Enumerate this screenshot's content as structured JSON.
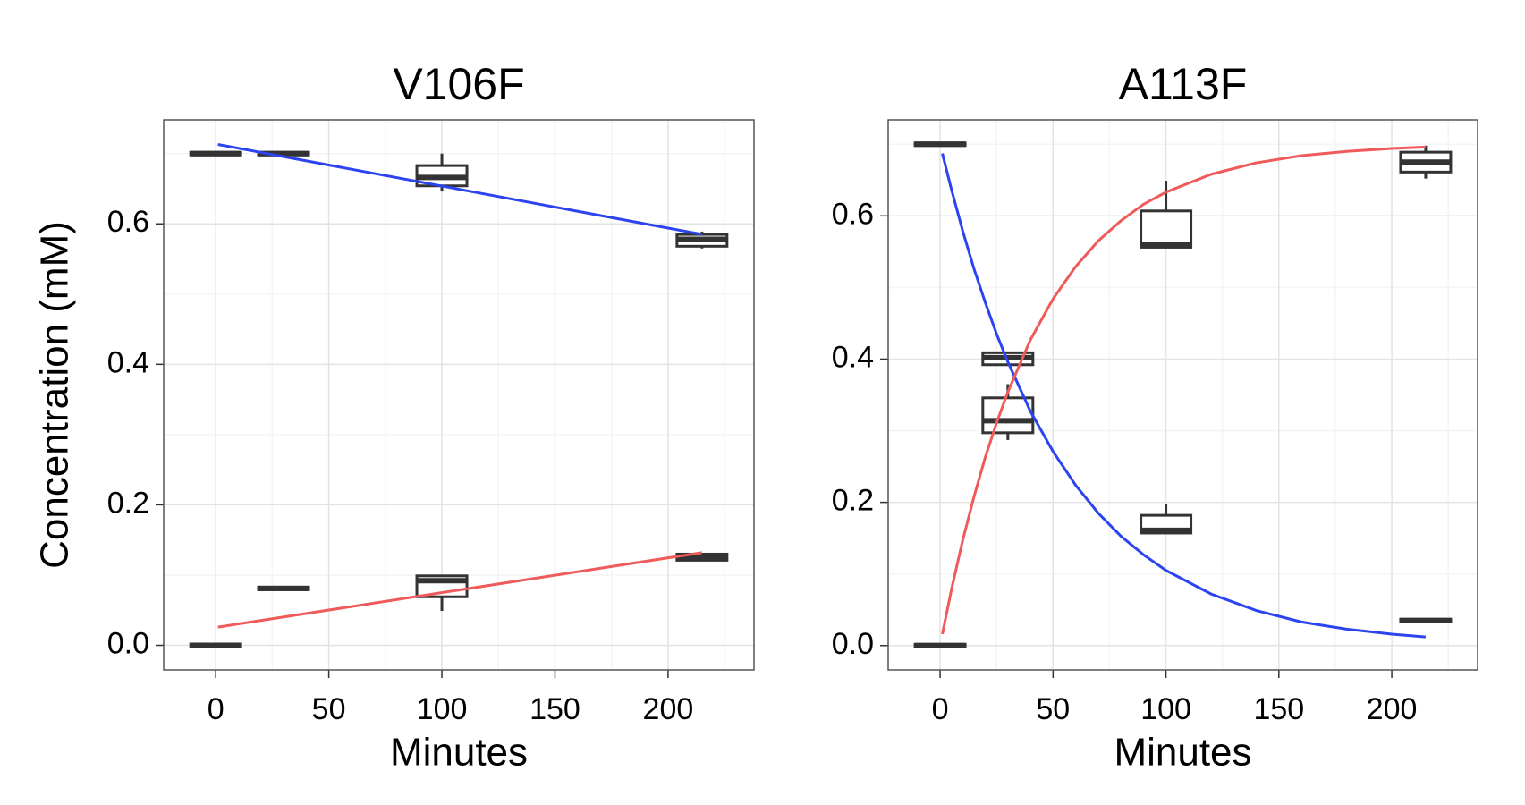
{
  "chart_data": [
    {
      "type": "box",
      "title": "V106F",
      "x_label": "Minutes",
      "y_label": "Concentration (mM)",
      "xlim": [
        -23,
        238
      ],
      "ylim": [
        -0.035,
        0.748
      ],
      "xticks": [
        0,
        50,
        100,
        150,
        200
      ],
      "yticks": [
        {
          "value": 0,
          "label": "0.0"
        },
        0.2,
        0.4,
        0.6
      ],
      "xminor": [
        25,
        75,
        125,
        175,
        225
      ],
      "yminor": [
        0.1,
        0.3,
        0.5,
        0.7
      ],
      "grid": true,
      "box_color": "#333333",
      "boxes": [
        {
          "x": 0,
          "min": 0.7,
          "q1": 0.7,
          "median": 0.7,
          "q3": 0.7,
          "max": 0.7
        },
        {
          "x": 0,
          "min": 0,
          "q1": 0,
          "median": 0,
          "q3": 0,
          "max": 0
        },
        {
          "x": 30,
          "min": 0.7,
          "q1": 0.7,
          "median": 0.7,
          "q3": 0.7,
          "max": 0.7
        },
        {
          "x": 30,
          "min": 0.081,
          "q1": 0.081,
          "median": 0.081,
          "q3": 0.081,
          "max": 0.081
        },
        {
          "x": 100,
          "min": 0.646,
          "q1": 0.656,
          "median": 0.666,
          "q3": 0.681,
          "max": 0.7
        },
        {
          "x": 100,
          "min": 0.049,
          "q1": 0.071,
          "median": 0.092,
          "q3": 0.097,
          "max": 0.1
        },
        {
          "x": 215,
          "min": 0.565,
          "q1": 0.57,
          "median": 0.578,
          "q3": 0.583,
          "max": 0.589
        },
        {
          "x": 215,
          "min": 0.123,
          "q1": 0.123,
          "median": 0.125,
          "q3": 0.128,
          "max": 0.128
        }
      ],
      "series": [
        {
          "color": "#2b44f0",
          "x": [
            1,
            215
          ],
          "values": [
            0.713,
            0.585
          ]
        },
        {
          "color": "#ef5a5a",
          "x": [
            1,
            215
          ],
          "values": [
            0.026,
            0.132
          ]
        }
      ]
    },
    {
      "type": "box",
      "title": "A113F",
      "x_label": "Minutes",
      "xlim": [
        -23,
        238
      ],
      "ylim": [
        -0.034,
        0.734
      ],
      "xticks": [
        0,
        50,
        100,
        150,
        200
      ],
      "yticks": [
        {
          "value": 0,
          "label": "0.0"
        },
        0.2,
        0.4,
        0.6
      ],
      "xminor": [
        25,
        75,
        125,
        175,
        225
      ],
      "yminor": [
        0.1,
        0.3,
        0.5,
        0.7
      ],
      "grid": true,
      "box_color": "#333333",
      "boxes": [
        {
          "x": 0,
          "min": 0.7,
          "q1": 0.7,
          "median": 0.7,
          "q3": 0.7,
          "max": 0.7
        },
        {
          "x": 0,
          "min": 0,
          "q1": 0,
          "median": 0,
          "q3": 0,
          "max": 0
        },
        {
          "x": 30,
          "min": 0.394,
          "q1": 0.394,
          "median": 0.402,
          "q3": 0.407,
          "max": 0.407
        },
        {
          "x": 30,
          "min": 0.287,
          "q1": 0.299,
          "median": 0.314,
          "q3": 0.344,
          "max": 0.365
        },
        {
          "x": 100,
          "min": 0.558,
          "q1": 0.558,
          "median": 0.56,
          "q3": 0.605,
          "max": 0.649
        },
        {
          "x": 100,
          "min": 0.159,
          "q1": 0.159,
          "median": 0.161,
          "q3": 0.18,
          "max": 0.198
        },
        {
          "x": 215,
          "min": 0.652,
          "q1": 0.663,
          "median": 0.675,
          "q3": 0.687,
          "max": 0.698
        },
        {
          "x": 215,
          "min": 0.035,
          "q1": 0.035,
          "median": 0.035,
          "q3": 0.035,
          "max": 0.035
        }
      ],
      "series": [
        {
          "color": "#2b44f0",
          "x": [
            1,
            5,
            10,
            15,
            20,
            25,
            30,
            40,
            50,
            60,
            70,
            80,
            90,
            100,
            120,
            140,
            160,
            180,
            200,
            215
          ],
          "values": [
            0.687,
            0.637,
            0.579,
            0.526,
            0.479,
            0.435,
            0.396,
            0.327,
            0.271,
            0.224,
            0.185,
            0.153,
            0.127,
            0.105,
            0.072,
            0.049,
            0.033,
            0.023,
            0.016,
            0.012
          ]
        },
        {
          "color": "#ef5a5a",
          "x": [
            1,
            5,
            10,
            15,
            20,
            25,
            30,
            40,
            50,
            60,
            70,
            80,
            90,
            100,
            120,
            140,
            160,
            180,
            200,
            215
          ],
          "values": [
            0.016,
            0.078,
            0.147,
            0.208,
            0.263,
            0.311,
            0.354,
            0.427,
            0.484,
            0.529,
            0.565,
            0.593,
            0.616,
            0.633,
            0.658,
            0.674,
            0.684,
            0.69,
            0.694,
            0.696
          ]
        }
      ]
    }
  ]
}
